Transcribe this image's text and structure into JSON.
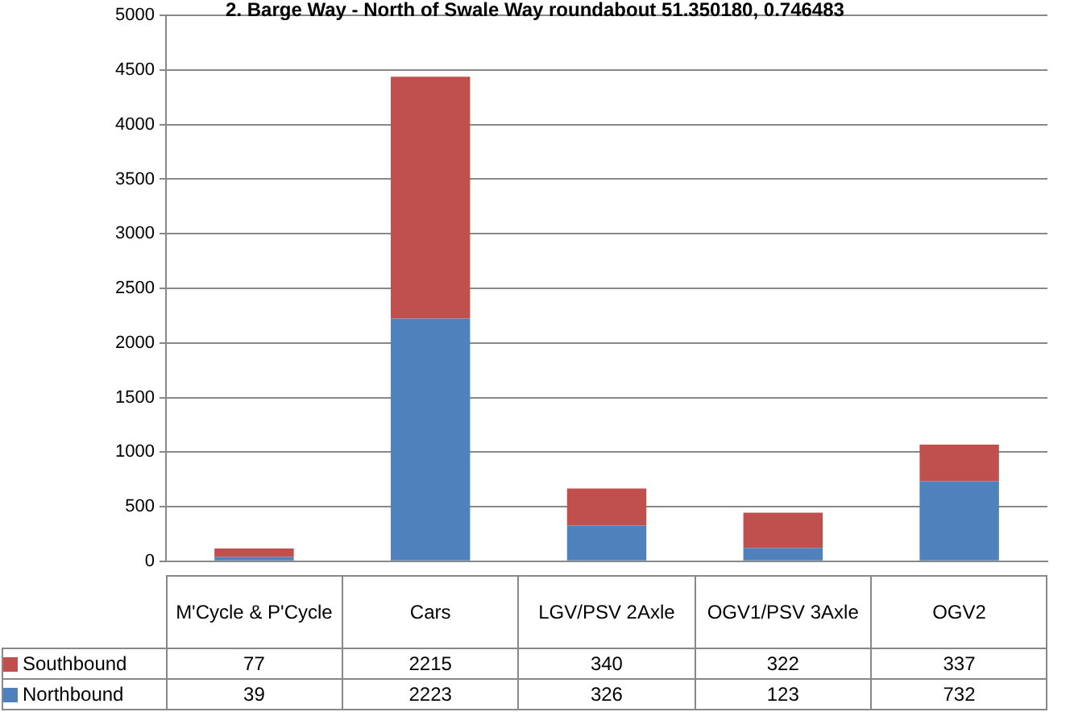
{
  "chart_data": {
    "type": "bar",
    "stacked": true,
    "title": "2. Barge Way - North of Swale Way roundabout  51.350180, 0.746483",
    "categories": [
      "M'Cycle & P'Cycle",
      "Cars",
      "LGV/PSV 2Axle",
      "OGV1/PSV 3Axle",
      "OGV2"
    ],
    "series": [
      {
        "name": "Northbound",
        "color": "#4f81bd",
        "values": [
          39,
          2223,
          326,
          123,
          732
        ]
      },
      {
        "name": "Southbound",
        "color": "#c0504d",
        "values": [
          77,
          2215,
          340,
          322,
          337
        ]
      }
    ],
    "ylim": [
      0,
      5000
    ],
    "yticks": [
      0,
      500,
      1000,
      1500,
      2000,
      2500,
      3000,
      3500,
      4000,
      4500,
      5000
    ],
    "grid": "y",
    "legend": "bottom",
    "data_labels": true
  }
}
